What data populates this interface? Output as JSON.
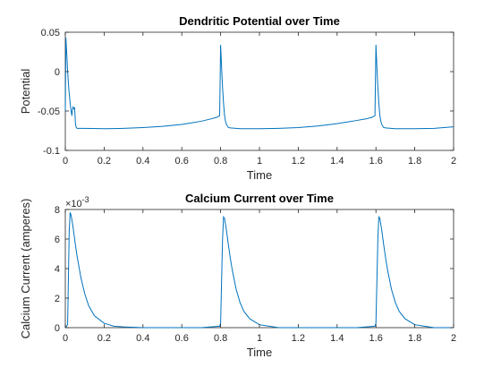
{
  "chart_data": [
    {
      "type": "line",
      "title": "Dendritic Potential over Time",
      "xlabel": "Time",
      "ylabel": "Potential",
      "xlim": [
        0,
        2
      ],
      "ylim": [
        -0.1,
        0.05
      ],
      "xticks": [
        "0",
        "0.2",
        "0.4",
        "0.6",
        "0.8",
        "1",
        "1.2",
        "1.4",
        "1.6",
        "1.8",
        "2"
      ],
      "yticks": [
        "-0.1",
        "-0.05",
        "0",
        "0.05"
      ],
      "grid": false,
      "color": "#0072bd",
      "series": [
        {
          "x": [
            0,
            0.003,
            0.008,
            0.012,
            0.018,
            0.025,
            0.03,
            0.034,
            0.036,
            0.04,
            0.044,
            0.048,
            0.05,
            0.052,
            0.055,
            0.06,
            0.07,
            0.1,
            0.2,
            0.3,
            0.4,
            0.5,
            0.6,
            0.65,
            0.7,
            0.75,
            0.78,
            0.795,
            0.8,
            0.805,
            0.81,
            0.815,
            0.82,
            0.825,
            0.83,
            0.835,
            0.84,
            0.85,
            0.9,
            1.0,
            1.1,
            1.2,
            1.3,
            1.4,
            1.45,
            1.5,
            1.55,
            1.58,
            1.595,
            1.6,
            1.605,
            1.61,
            1.615,
            1.62,
            1.625,
            1.63,
            1.635,
            1.64,
            1.65,
            1.7,
            1.8,
            1.9,
            2.0
          ],
          "y": [
            -0.05,
            0.043,
            0.02,
            0.0,
            -0.022,
            -0.04,
            -0.05,
            -0.056,
            -0.05,
            -0.045,
            -0.047,
            -0.046,
            -0.055,
            -0.065,
            -0.07,
            -0.072,
            -0.072,
            -0.072,
            -0.0725,
            -0.072,
            -0.071,
            -0.0695,
            -0.067,
            -0.065,
            -0.063,
            -0.06,
            -0.058,
            -0.056,
            0.034,
            0.005,
            -0.02,
            -0.04,
            -0.055,
            -0.063,
            -0.067,
            -0.069,
            -0.071,
            -0.0715,
            -0.0725,
            -0.0725,
            -0.072,
            -0.071,
            -0.069,
            -0.066,
            -0.064,
            -0.062,
            -0.06,
            -0.058,
            -0.056,
            0.034,
            0.005,
            -0.02,
            -0.04,
            -0.055,
            -0.063,
            -0.067,
            -0.069,
            -0.071,
            -0.0715,
            -0.0725,
            -0.0725,
            -0.072,
            -0.07
          ]
        }
      ]
    },
    {
      "type": "line",
      "title": "Calcium Current over Time",
      "xlabel": "Time",
      "ylabel": "Calcium Current (amperes)",
      "y_exponent": "×10",
      "y_exponent_power": "-3",
      "xlim": [
        0,
        2
      ],
      "ylim": [
        0,
        0.008
      ],
      "xticks": [
        "0",
        "0.2",
        "0.4",
        "0.6",
        "0.8",
        "1",
        "1.2",
        "1.4",
        "1.6",
        "1.8",
        "2"
      ],
      "yticks": [
        "0",
        "2",
        "4",
        "6",
        "8"
      ],
      "grid": false,
      "color": "#0072bd",
      "series": [
        {
          "x": [
            0,
            0.012,
            0.02,
            0.025,
            0.03,
            0.04,
            0.05,
            0.06,
            0.08,
            0.1,
            0.12,
            0.15,
            0.2,
            0.25,
            0.3,
            0.4,
            0.5,
            0.6,
            0.7,
            0.795,
            0.8,
            0.81,
            0.815,
            0.82,
            0.83,
            0.84,
            0.85,
            0.86,
            0.88,
            0.9,
            0.92,
            0.95,
            1.0,
            1.05,
            1.1,
            1.2,
            1.3,
            1.4,
            1.5,
            1.595,
            1.6,
            1.61,
            1.615,
            1.62,
            1.63,
            1.64,
            1.65,
            1.66,
            1.68,
            1.7,
            1.72,
            1.75,
            1.8,
            1.85,
            1.9,
            2.0
          ],
          "y": [
            0,
            0.0002,
            0.0065,
            0.0078,
            0.0076,
            0.0068,
            0.0058,
            0.0049,
            0.0034,
            0.0023,
            0.0015,
            0.0008,
            0.0003,
            0.0001,
            5e-05,
            0,
            0,
            0,
            0,
            0.0001,
            0.0003,
            0.006,
            0.0075,
            0.0074,
            0.0066,
            0.0056,
            0.0047,
            0.0039,
            0.0026,
            0.0017,
            0.0011,
            0.0006,
            0.0002,
            0.0001,
            0,
            0,
            0,
            0,
            0,
            0.0001,
            0.0003,
            0.006,
            0.0075,
            0.0074,
            0.0066,
            0.0056,
            0.0047,
            0.0039,
            0.0026,
            0.0017,
            0.0011,
            0.0006,
            0.0002,
            0.0001,
            0,
            0
          ]
        }
      ]
    }
  ]
}
